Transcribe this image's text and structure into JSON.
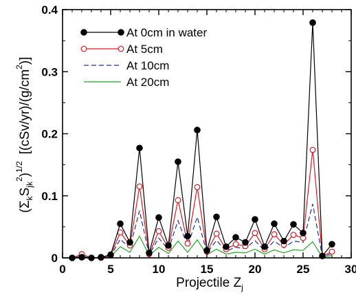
{
  "chart_data": {
    "type": "line",
    "xlabel": "Projectile Z",
    "xlabel_sub": "j",
    "ylabel": "(Σ",
    "ylabel_parts": {
      "sigma_sub": "k",
      "s": "S",
      "s_sub": "jk",
      "sq_sup": "2",
      "close": ")",
      "power_sup": "1/2",
      "units": "[(cSv/yr)/(g/cm",
      "units_sup": "2",
      "units_close": ")]"
    },
    "xlim": [
      0,
      30
    ],
    "ylim": [
      0,
      0.4
    ],
    "x_ticks": [
      0,
      5,
      10,
      15,
      20,
      25,
      30
    ],
    "y_ticks": [
      0,
      0.1,
      0.2,
      0.3,
      0.4
    ],
    "x_tick_labels": [
      "0",
      "5",
      "10",
      "15",
      "20",
      "25",
      "30"
    ],
    "y_tick_labels": [
      "0",
      "0.1",
      "0.2",
      "0.3",
      "0.4"
    ],
    "legend_position": "top-left",
    "grid": false,
    "x": [
      1,
      2,
      3,
      4,
      5,
      6,
      7,
      8,
      9,
      10,
      11,
      12,
      13,
      14,
      15,
      16,
      17,
      18,
      19,
      20,
      21,
      22,
      23,
      24,
      25,
      26,
      27,
      28
    ],
    "series": [
      {
        "name": "At 0cm in water",
        "color": "#000000",
        "marker": "filled-circle",
        "line": "solid",
        "values": [
          0.0,
          0.001,
          0.0,
          0.001,
          0.005,
          0.055,
          0.025,
          0.177,
          0.008,
          0.065,
          0.02,
          0.155,
          0.035,
          0.206,
          0.012,
          0.066,
          0.018,
          0.033,
          0.025,
          0.062,
          0.018,
          0.055,
          0.027,
          0.054,
          0.04,
          0.379,
          0.003,
          0.022
        ]
      },
      {
        "name": "At 5cm",
        "color": "#e8141e",
        "marker": "open-circle",
        "line": "solid",
        "values": [
          0.0,
          0.006,
          0.0,
          0.0,
          0.004,
          0.041,
          0.02,
          0.115,
          0.006,
          0.043,
          0.016,
          0.093,
          0.023,
          0.114,
          0.01,
          0.039,
          0.014,
          0.022,
          0.019,
          0.04,
          0.014,
          0.038,
          0.021,
          0.037,
          0.032,
          0.174,
          0.003,
          0.01
        ]
      },
      {
        "name": "At 10cm",
        "color": "#1f2d9e",
        "marker": "none",
        "line": "dashed",
        "values": [
          0.0,
          0.004,
          0.0,
          0.0,
          0.003,
          0.03,
          0.016,
          0.076,
          0.005,
          0.032,
          0.013,
          0.06,
          0.019,
          0.066,
          0.008,
          0.028,
          0.011,
          0.017,
          0.015,
          0.028,
          0.011,
          0.027,
          0.016,
          0.027,
          0.025,
          0.087,
          0.002,
          0.007
        ]
      },
      {
        "name": "At 20cm",
        "color": "#22a822",
        "marker": "none",
        "line": "solid",
        "values": [
          0.0,
          0.003,
          0.0,
          0.0,
          0.002,
          0.018,
          0.009,
          0.035,
          0.004,
          0.017,
          0.007,
          0.027,
          0.009,
          0.029,
          0.005,
          0.014,
          0.006,
          0.009,
          0.008,
          0.014,
          0.006,
          0.013,
          0.008,
          0.013,
          0.012,
          0.026,
          0.001,
          0.004
        ]
      }
    ]
  }
}
